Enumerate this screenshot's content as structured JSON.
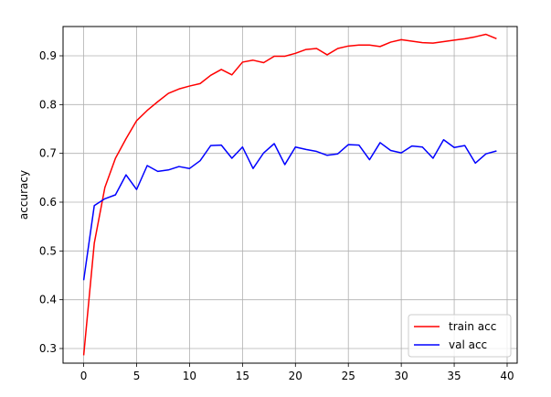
{
  "chart_data": {
    "type": "line",
    "title": "",
    "xlabel": "",
    "ylabel": "accuracy",
    "xlim": [
      -1.95,
      40.95
    ],
    "ylim": [
      0.27,
      0.96
    ],
    "xticks": [
      0,
      5,
      10,
      15,
      20,
      25,
      30,
      35,
      40
    ],
    "yticks": [
      0.3,
      0.4,
      0.5,
      0.6,
      0.7,
      0.8,
      0.9
    ],
    "ytick_labels": [
      "0.3",
      "0.4",
      "0.5",
      "0.6",
      "0.7",
      "0.8",
      "0.9"
    ],
    "grid": true,
    "legend_position": "lower-right",
    "x": [
      0,
      1,
      2,
      3,
      4,
      5,
      6,
      7,
      8,
      9,
      10,
      11,
      12,
      13,
      14,
      15,
      16,
      17,
      18,
      19,
      20,
      21,
      22,
      23,
      24,
      25,
      26,
      27,
      28,
      29,
      30,
      31,
      32,
      33,
      34,
      35,
      36,
      37,
      38,
      39
    ],
    "series": [
      {
        "name": "train acc",
        "color": "#ff0000",
        "values": [
          0.286,
          0.516,
          0.63,
          0.69,
          0.73,
          0.767,
          0.788,
          0.806,
          0.823,
          0.832,
          0.838,
          0.843,
          0.86,
          0.872,
          0.861,
          0.887,
          0.891,
          0.886,
          0.899,
          0.899,
          0.905,
          0.913,
          0.915,
          0.902,
          0.915,
          0.92,
          0.922,
          0.922,
          0.919,
          0.928,
          0.933,
          0.93,
          0.927,
          0.926,
          0.929,
          0.932,
          0.935,
          0.939,
          0.944,
          0.935
        ]
      },
      {
        "name": "val acc",
        "color": "#0000ff",
        "values": [
          0.44,
          0.593,
          0.607,
          0.615,
          0.656,
          0.626,
          0.675,
          0.663,
          0.666,
          0.673,
          0.669,
          0.685,
          0.716,
          0.717,
          0.69,
          0.713,
          0.669,
          0.701,
          0.72,
          0.677,
          0.713,
          0.708,
          0.704,
          0.696,
          0.699,
          0.718,
          0.717,
          0.687,
          0.722,
          0.706,
          0.701,
          0.715,
          0.713,
          0.69,
          0.728,
          0.712,
          0.716,
          0.68,
          0.699,
          0.705
        ]
      }
    ]
  }
}
